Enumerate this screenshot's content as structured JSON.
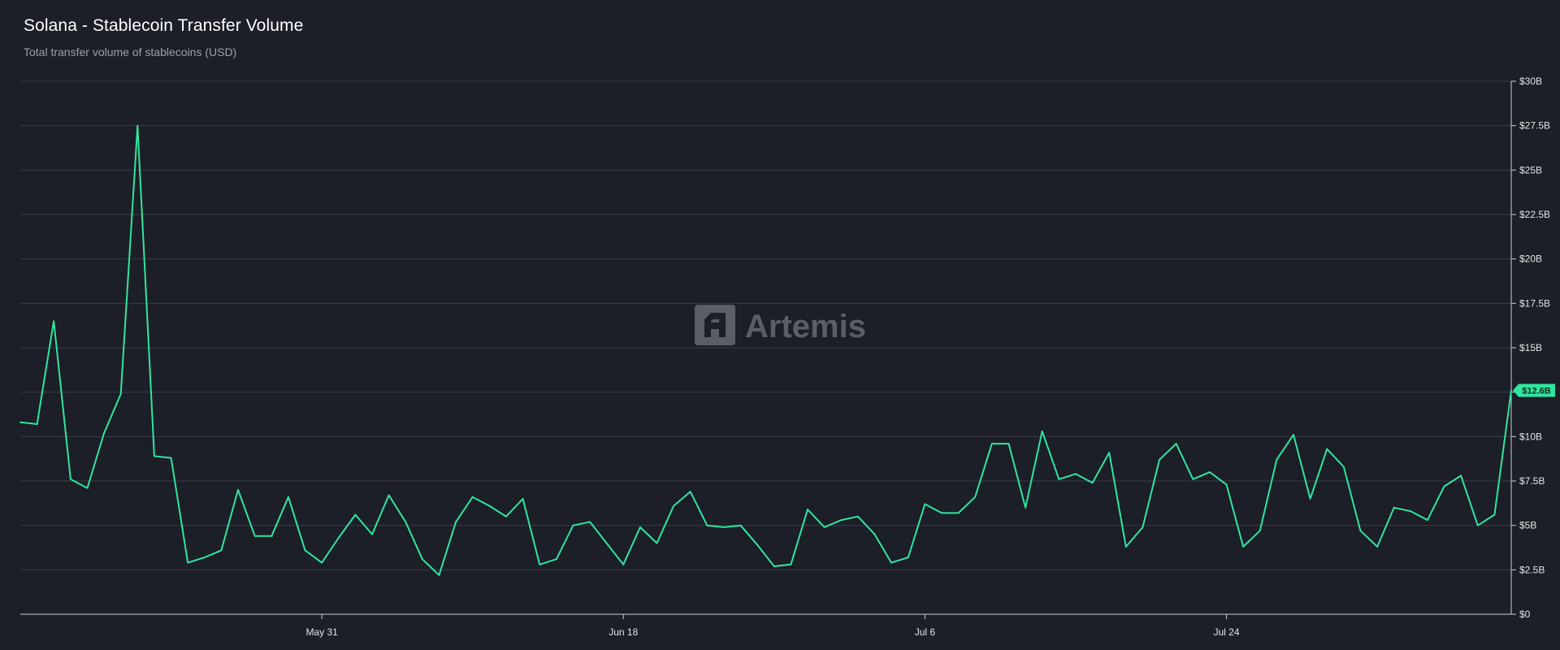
{
  "header": {
    "title": "Solana - Stablecoin Transfer Volume",
    "subtitle": "Total transfer volume of stablecoins (USD)"
  },
  "watermark": {
    "text": "Artemis",
    "icon": "artemis-logo-icon"
  },
  "colors": {
    "background": "#1c1e28",
    "line": "#2fe6a0",
    "grid": "#3a3c46",
    "badge": "#2fe6a0"
  },
  "chart_data": {
    "type": "line",
    "title": "Solana - Stablecoin Transfer Volume",
    "subtitle": "Total transfer volume of stablecoins (USD)",
    "xlabel": "",
    "ylabel": "",
    "ylim": [
      0,
      30
    ],
    "y_unit": "billions USD",
    "yticks": [
      0,
      2.5,
      5,
      7.5,
      10,
      12.5,
      15,
      17.5,
      20,
      22.5,
      25,
      27.5,
      30
    ],
    "yticklabels": [
      "$0",
      "$2.5B",
      "$5B",
      "$7.5B",
      "$10B",
      "",
      "$15B",
      "$17.5B",
      "$20B",
      "$22.5B",
      "$25B",
      "$27.5B",
      "$30B"
    ],
    "xticks": [
      {
        "index": 18,
        "label": "May 31"
      },
      {
        "index": 36,
        "label": "Jun 18"
      },
      {
        "index": 54,
        "label": "Jul 6"
      },
      {
        "index": 72,
        "label": "Jul 24"
      }
    ],
    "x_start": "May 13",
    "x_end": "Aug 12",
    "grid": true,
    "last_value_label": "$12.6B",
    "series": [
      {
        "values": [
          10.8,
          10.7,
          16.5,
          7.6,
          7.1,
          10.2,
          12.4,
          27.5,
          8.9,
          8.8,
          2.9,
          3.2,
          3.6,
          7.0,
          4.4,
          4.4,
          6.6,
          3.6,
          2.9,
          4.3,
          5.6,
          4.5,
          6.7,
          5.2,
          3.1,
          2.2,
          5.2,
          6.6,
          6.1,
          5.5,
          6.5,
          2.8,
          3.1,
          5.0,
          5.2,
          4.0,
          2.8,
          4.9,
          4.0,
          6.1,
          6.9,
          5.0,
          4.9,
          5.0,
          3.9,
          2.7,
          2.8,
          5.9,
          4.9,
          5.3,
          5.5,
          4.5,
          2.9,
          3.2,
          6.2,
          5.7,
          5.7,
          6.6,
          9.6,
          9.6,
          6.0,
          10.3,
          7.6,
          7.9,
          7.4,
          9.1,
          3.8,
          4.9,
          8.7,
          9.6,
          7.6,
          8.0,
          7.3,
          3.8,
          4.7,
          8.7,
          10.1,
          6.5,
          9.3,
          8.3,
          4.7,
          3.8,
          6.0,
          5.8,
          5.3,
          7.2,
          7.8,
          5.0,
          5.6,
          12.6
        ]
      }
    ]
  }
}
